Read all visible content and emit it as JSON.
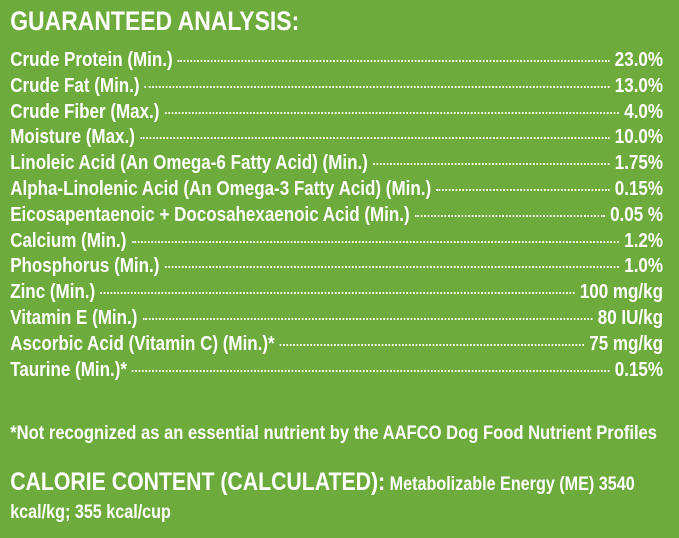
{
  "header": {
    "title": "GUARANTEED ANALYSIS:"
  },
  "table": {
    "rows": [
      [
        "Crude Protein (Min.)",
        "23.0%"
      ],
      [
        "Crude Fat (Min.)",
        "13.0%"
      ],
      [
        "Crude Fiber (Max.)",
        "4.0%"
      ],
      [
        "Moisture (Max.)",
        "10.0%"
      ],
      [
        "Linoleic Acid (An Omega-6 Fatty Acid) (Min.)",
        "1.75%"
      ],
      [
        "Alpha-Linolenic Acid (An Omega-3 Fatty Acid) (Min.)",
        "0.15%"
      ],
      [
        "Eicosapentaenoic + Docosahexaenoic Acid (Min.)",
        "0.05 %"
      ],
      [
        "Calcium (Min.)",
        "1.2%"
      ],
      [
        "Phosphorus (Min.)",
        "1.0%"
      ],
      [
        "Zinc (Min.)",
        "100 mg/kg"
      ],
      [
        "Vitamin E (Min.)",
        "80 IU/kg"
      ],
      [
        "Ascorbic Acid (Vitamin C) (Min.)*",
        "75 mg/kg"
      ],
      [
        "Taurine (Min.)*",
        "0.15%"
      ]
    ]
  },
  "footnote": "*Not recognized as an essential nutrient by the AAFCO Dog Food Nutrient Profiles",
  "calorie": {
    "label": "CALORIE CONTENT (CALCULATED):",
    "text": "Metabolizable Energy (ME) 3540 kcal/kg; 355 kcal/cup"
  }
}
